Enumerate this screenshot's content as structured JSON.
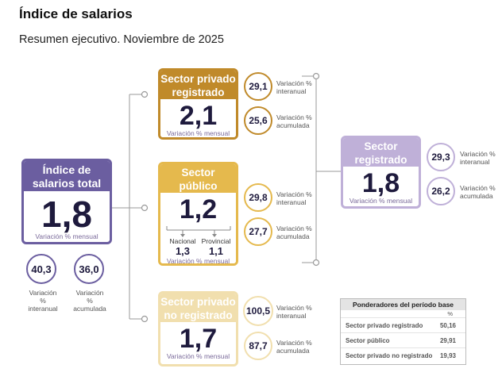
{
  "title": "Índice de salarios",
  "subtitle": "Resumen ejecutivo. Noviembre de 2025",
  "colors": {
    "total": "#6b5ea0",
    "privado_registrado": "#c08a2a",
    "publico": "#e5b94d",
    "privado_no_registrado": "#f1dfae",
    "sector_registrado": "#bfb0d8"
  },
  "total": {
    "head": [
      "Índice de",
      "salarios total"
    ],
    "value": "1,8",
    "note": "Variación % mensual",
    "interanual": "40,3",
    "acumulada": "36,0",
    "interanual_label": [
      "Variación %",
      "interanual"
    ],
    "acumulada_label": [
      "Variación %",
      "acumulada"
    ]
  },
  "privado_registrado": {
    "head": [
      "Sector privado",
      "registrado"
    ],
    "value": "2,1",
    "note": "Variación % mensual",
    "interanual": "29,1",
    "acumulada": "25,6",
    "interanual_label": [
      "Variación %",
      "interanual"
    ],
    "acumulada_label": [
      "Variación %",
      "acumulada"
    ]
  },
  "publico": {
    "head": [
      "Sector",
      "público"
    ],
    "value": "1,2",
    "note": "Variación % mensual",
    "nacional_label": "Nacional",
    "nacional_value": "1,3",
    "provincial_label": "Provincial",
    "provincial_value": "1,1",
    "interanual": "29,8",
    "acumulada": "27,7",
    "interanual_label": [
      "Variación %",
      "interanual"
    ],
    "acumulada_label": [
      "Variación %",
      "acumulada"
    ]
  },
  "privado_no_registrado": {
    "head": [
      "Sector privado",
      "no registrado"
    ],
    "value": "1,7",
    "note": "Variación % mensual",
    "interanual": "100,5",
    "acumulada": "87,7",
    "interanual_label": [
      "Variación %",
      "interanual"
    ],
    "acumulada_label": [
      "Variación %",
      "acumulada"
    ]
  },
  "sector_registrado": {
    "head": [
      "Sector",
      "registrado"
    ],
    "value": "1,8",
    "note": "Variación % mensual",
    "interanual": "29,3",
    "acumulada": "26,2",
    "interanual_label": [
      "Variación %",
      "interanual"
    ],
    "acumulada_label": [
      "Variación %",
      "acumulada"
    ]
  },
  "ponderadores": {
    "title": "Ponderadores del período base",
    "unit": "%",
    "rows": [
      {
        "label": "Sector privado registrado",
        "value": "50,16"
      },
      {
        "label": "Sector público",
        "value": "29,91"
      },
      {
        "label": "Sector privado no registrado",
        "value": "19,93"
      }
    ]
  }
}
